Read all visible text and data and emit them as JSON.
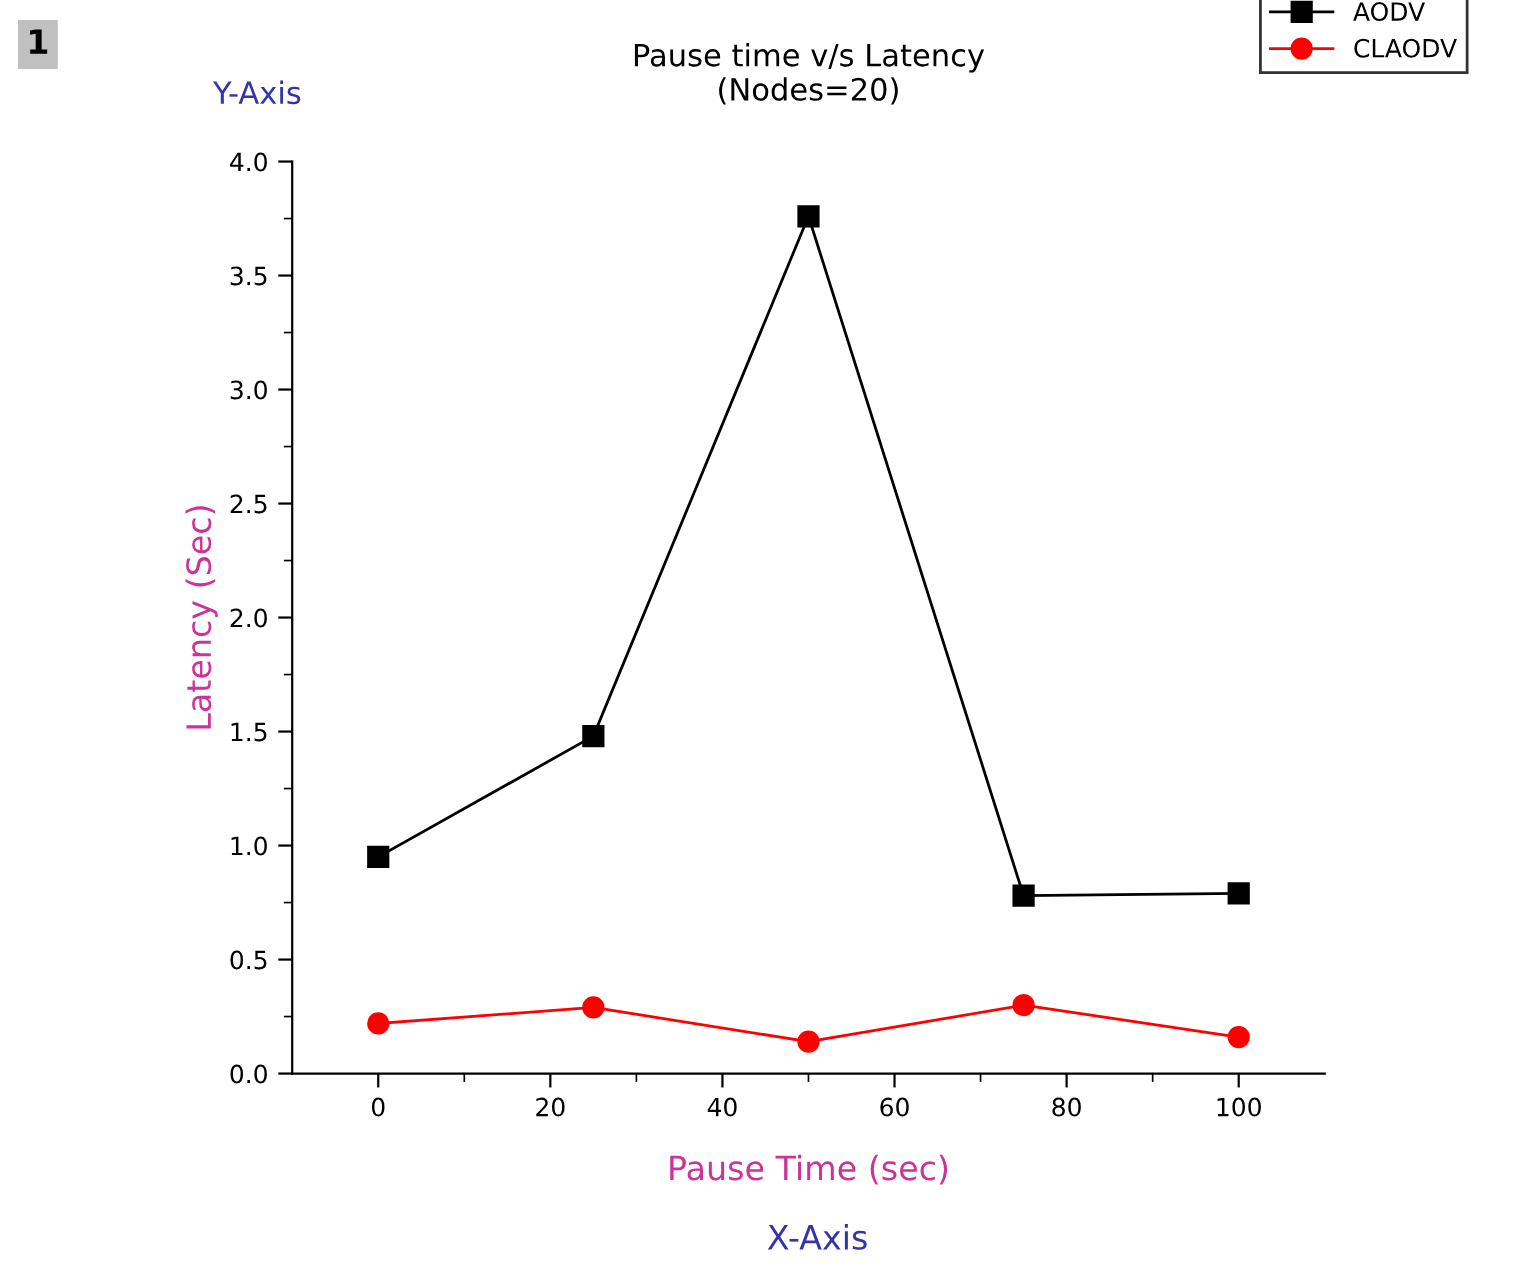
{
  "chart_data": {
    "type": "line",
    "title": "Pause time v/s Latency\n(Nodes=20)",
    "xlabel": "Pause Time (sec)",
    "ylabel": "Latency (Sec)",
    "annotations": [
      "1",
      "Y-Axis",
      "X-Axis"
    ],
    "x": [
      0,
      25,
      50,
      75,
      100
    ],
    "series": [
      {
        "name": "AODV",
        "color": "#000000",
        "marker": "square",
        "values": [
          0.95,
          1.48,
          3.76,
          0.78,
          0.79
        ]
      },
      {
        "name": "CLAODV",
        "color": "#ff0000",
        "marker": "circle",
        "values": [
          0.22,
          0.29,
          0.14,
          0.3,
          0.16
        ]
      }
    ],
    "xlim": [
      -10,
      110
    ],
    "ylim": [
      0,
      4.0
    ],
    "xticks": [
      0,
      {
        "value": 10,
        "label": null
      },
      20,
      {
        "value": 30,
        "label": null
      },
      40,
      {
        "value": 50,
        "label": null
      },
      60,
      {
        "value": 70,
        "label": null
      },
      80,
      {
        "value": 90,
        "label": null
      },
      100
    ],
    "yticks": [
      {
        "value": 0,
        "label": "0.0"
      },
      {
        "value": 0.25,
        "label": null
      },
      0.5,
      {
        "value": 0.75,
        "label": null
      },
      {
        "value": 1,
        "label": "1.0"
      },
      {
        "value": 1.25,
        "label": null
      },
      1.5,
      {
        "value": 1.75,
        "label": null
      },
      {
        "value": 2,
        "label": "2.0"
      },
      {
        "value": 2.25,
        "label": null
      },
      2.5,
      {
        "value": 2.75,
        "label": null
      },
      {
        "value": 3,
        "label": "3.0"
      },
      {
        "value": 3.25,
        "label": null
      },
      3.5,
      {
        "value": 3.75,
        "label": null
      },
      {
        "value": 4,
        "label": "4.0"
      }
    ],
    "grid": false,
    "legend": "top right",
    "line_style": "solid"
  }
}
